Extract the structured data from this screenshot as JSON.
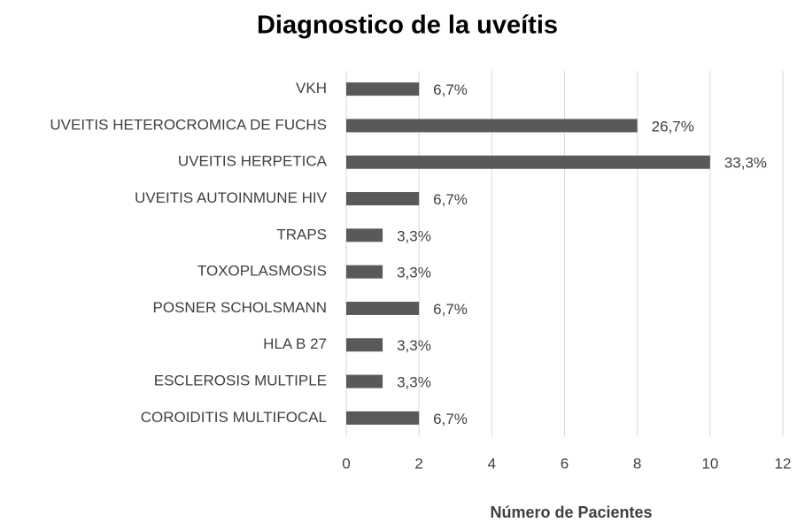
{
  "chart_data": {
    "type": "bar",
    "orientation": "horizontal",
    "title": "Diagnostico de la uveítis",
    "x_label": "Número de Pacientes",
    "categories": [
      "VKH",
      "UVEITIS HETEROCROMICA DE FUCHS",
      "UVEITIS HERPETICA",
      "UVEITIS AUTOINMUNE HIV",
      "TRAPS",
      "TOXOPLASMOSIS",
      "POSNER SCHOLSMANN",
      "HLA B 27",
      "ESCLEROSIS MULTIPLE",
      "COROIDITIS MULTIFOCAL"
    ],
    "values": [
      2,
      8,
      10,
      2,
      1,
      1,
      2,
      1,
      1,
      2
    ],
    "value_labels": [
      "6,7%",
      "26,7%",
      "33,3%",
      "6,7%",
      "3,3%",
      "3,3%",
      "6,7%",
      "3,3%",
      "3,3%",
      "6,7%"
    ],
    "color": "#595959",
    "xlim": [
      0,
      12
    ],
    "xticks": [
      0,
      2,
      4,
      6,
      8,
      10,
      12
    ],
    "grid": true
  }
}
